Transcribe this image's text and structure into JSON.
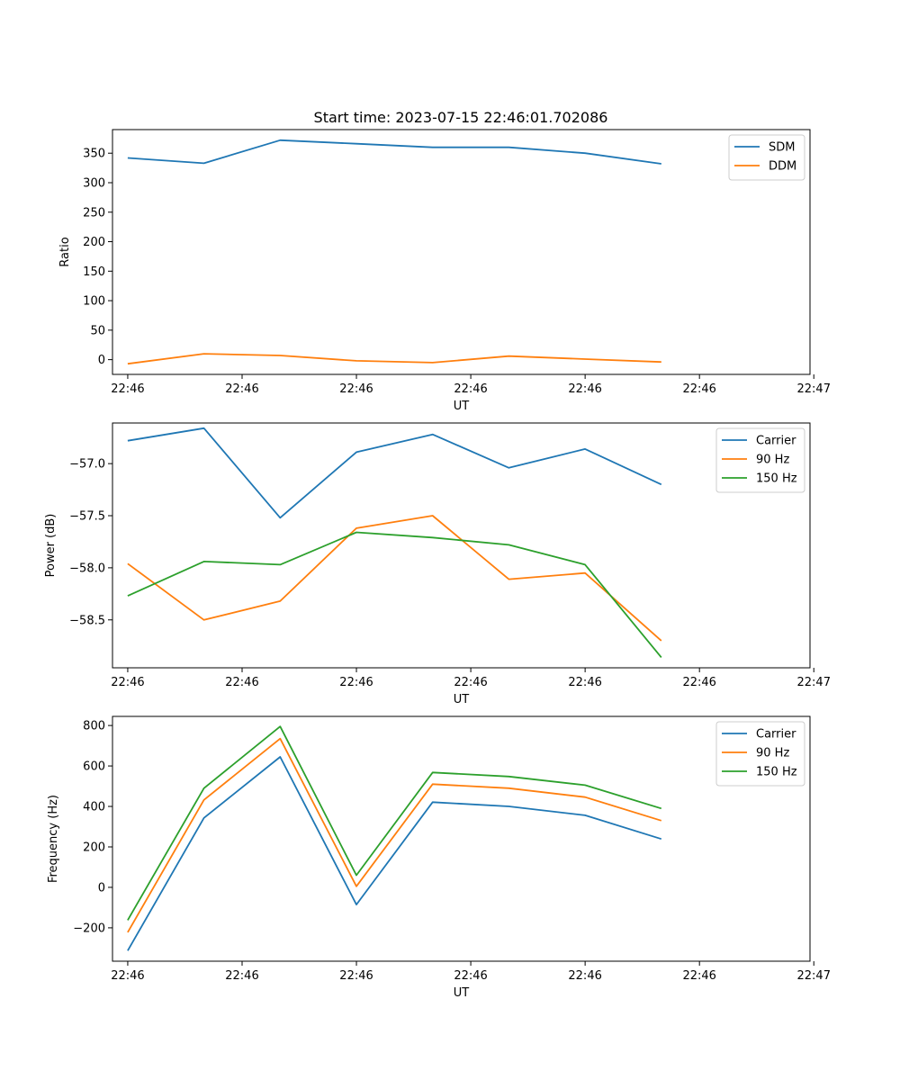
{
  "title": "Start time: 2023-07-15 22:46:01.702086",
  "colors": {
    "blue": "#1f77b4",
    "orange": "#ff7f0e",
    "green": "#2ca02c"
  },
  "chart_data": [
    {
      "type": "line",
      "title": "Start time: 2023-07-15 22:46:01.702086",
      "xlabel": "UT",
      "ylabel": "Ratio",
      "x": [
        1,
        2,
        3,
        4,
        5,
        6,
        7,
        8
      ],
      "xlim": [
        0.8,
        9.95
      ],
      "xticks": [
        1,
        2.5,
        4,
        5.5,
        7,
        8.5,
        10
      ],
      "xtick_labels": [
        "22:46",
        "22:46",
        "22:46",
        "22:46",
        "22:46",
        "22:46",
        "22:47"
      ],
      "ylim": [
        -25,
        390
      ],
      "yticks": [
        0,
        50,
        100,
        150,
        200,
        250,
        300,
        350
      ],
      "ytick_labels": [
        "0",
        "50",
        "100",
        "150",
        "200",
        "250",
        "300",
        "350"
      ],
      "legend_position": "top-right",
      "series": [
        {
          "name": "SDM",
          "color": "blue",
          "values": [
            342,
            333,
            372,
            366,
            360,
            360,
            350,
            332
          ]
        },
        {
          "name": "DDM",
          "color": "orange",
          "values": [
            -7,
            10,
            7,
            -2,
            -5,
            6,
            1,
            -4
          ]
        }
      ]
    },
    {
      "type": "line",
      "title": "",
      "xlabel": "UT",
      "ylabel": "Power (dB)",
      "x": [
        1,
        2,
        3,
        4,
        5,
        6,
        7,
        8
      ],
      "xlim": [
        0.8,
        9.95
      ],
      "xticks": [
        1,
        2.5,
        4,
        5.5,
        7,
        8.5,
        10
      ],
      "xtick_labels": [
        "22:46",
        "22:46",
        "22:46",
        "22:46",
        "22:46",
        "22:46",
        "22:47"
      ],
      "ylim": [
        -58.96,
        -56.61
      ],
      "yticks": [
        -57.0,
        -57.5,
        -58.0,
        -58.5
      ],
      "ytick_labels": [
        "−57.0",
        "−57.5",
        "−58.0",
        "−58.5"
      ],
      "legend_position": "top-right",
      "series": [
        {
          "name": "Carrier",
          "color": "blue",
          "values": [
            -56.78,
            -56.66,
            -57.52,
            -56.89,
            -56.72,
            -57.04,
            -56.86,
            -57.2
          ]
        },
        {
          "name": "90 Hz",
          "color": "orange",
          "values": [
            -57.96,
            -58.5,
            -58.32,
            -57.62,
            -57.5,
            -58.11,
            -58.05,
            -58.7
          ]
        },
        {
          "name": "150 Hz",
          "color": "green",
          "values": [
            -58.27,
            -57.94,
            -57.97,
            -57.66,
            -57.71,
            -57.78,
            -57.97,
            -58.86
          ]
        }
      ]
    },
    {
      "type": "line",
      "title": "",
      "xlabel": "UT",
      "ylabel": "Frequency (Hz)",
      "x": [
        1,
        2,
        3,
        4,
        5,
        6,
        7,
        8
      ],
      "xlim": [
        0.8,
        9.95
      ],
      "xticks": [
        1,
        2.5,
        4,
        5.5,
        7,
        8.5,
        10
      ],
      "xtick_labels": [
        "22:46",
        "22:46",
        "22:46",
        "22:46",
        "22:46",
        "22:46",
        "22:47"
      ],
      "ylim": [
        -365,
        845
      ],
      "yticks": [
        -200,
        0,
        200,
        400,
        600,
        800
      ],
      "ytick_labels": [
        "−200",
        "0",
        "200",
        "400",
        "600",
        "800"
      ],
      "legend_position": "top-right",
      "series": [
        {
          "name": "Carrier",
          "color": "blue",
          "values": [
            -313,
            343,
            645,
            -85,
            421,
            400,
            356,
            239
          ]
        },
        {
          "name": "90 Hz",
          "color": "orange",
          "values": [
            -222,
            432,
            735,
            5,
            510,
            490,
            446,
            330
          ]
        },
        {
          "name": "150 Hz",
          "color": "green",
          "values": [
            -162,
            490,
            795,
            60,
            568,
            548,
            505,
            390
          ]
        }
      ]
    }
  ]
}
